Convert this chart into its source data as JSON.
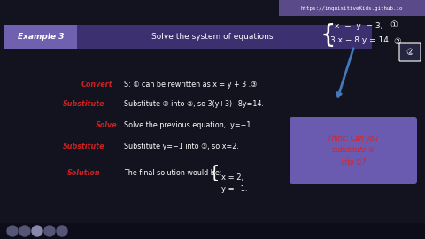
{
  "bg_color": "#131320",
  "title_url": "https://inquisitiveKids.github.io",
  "url_bg": "#5a4a8a",
  "example_label": "Example 3",
  "example_label_bg": "#7060b0",
  "example_bar_bg": "#3d3070",
  "example_text": "Solve the system of equations",
  "eq1": "x  −  y  = 3,",
  "eq2": "3 x − 8 y = 14.",
  "line1_label": "Convert",
  "line1_text": "S: ① can be rewritten as x = y + 3 .③",
  "line2_label": "Substitute",
  "line2_text": "Substitute ③ into ②, so 3(y+3)−8y=14.",
  "line3_label": "Solve",
  "line3_text": "Solve the previous equation,  y=−1.",
  "line4_label": "Substitute",
  "line4_text": "Substitute y=−1 into ③, so x=2.",
  "line5_label": "Solution",
  "line5_text": "The final solution would be:",
  "sol1": "x = 2,",
  "sol2": "y =−1.",
  "bubble_text": "Think: Can you\nsubstitute ③\ninto ①?",
  "label_color": "#cc2222",
  "text_color": "#ffffff",
  "bubble_bg": "#6a5ab0",
  "bubble_text_color": "#dd2222",
  "arrow_color": "#4477bb"
}
